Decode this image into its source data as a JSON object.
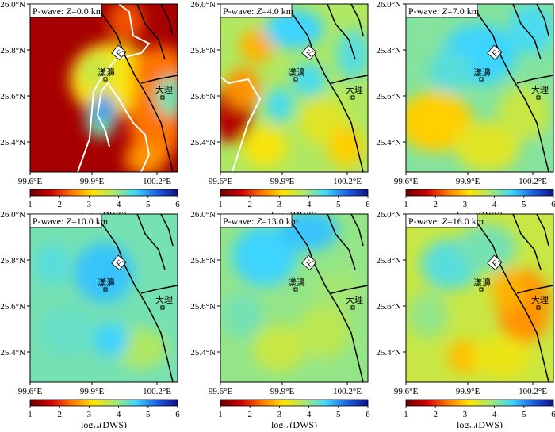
{
  "figure": {
    "panels": [
      {
        "id": "z0",
        "title_prefix": "P-wave: ",
        "title_var": "Z",
        "title_value": "=0.0 km",
        "dominant_dws": 1.4
      },
      {
        "id": "z4",
        "title_prefix": "P-wave: ",
        "title_var": "Z",
        "title_value": "=4.0 km",
        "dominant_dws": 3.8
      },
      {
        "id": "z7",
        "title_prefix": "P-wave: ",
        "title_var": "Z",
        "title_value": "=7.0 km",
        "dominant_dws": 4.1
      },
      {
        "id": "z10",
        "title_prefix": "P-wave: ",
        "title_var": "Z",
        "title_value": "=10.0 km",
        "dominant_dws": 4.2
      },
      {
        "id": "z13",
        "title_prefix": "P-wave: ",
        "title_var": "Z",
        "title_value": "=13.0 km",
        "dominant_dws": 4.0
      },
      {
        "id": "z16",
        "title_prefix": "P-wave: ",
        "title_var": "Z",
        "title_value": "=16.0 km",
        "dominant_dws": 3.6
      }
    ],
    "lat_labels": [
      "26.0°N",
      "25.8°N",
      "25.6°N",
      "25.4°N"
    ],
    "lon_labels": [
      "99.6°E",
      "99.9°E",
      "100.2°E"
    ],
    "fault_label": "F",
    "fault_subscript": "1",
    "city_yangbi": "漾濞",
    "city_dali": "大理",
    "colorbar": {
      "ticks": [
        "1",
        "2",
        "3",
        "4",
        "5",
        "6"
      ],
      "label_prefix": "log",
      "label_sub": "10",
      "label_suffix": "(DWS)",
      "stops": [
        "#6b0000",
        "#d40000",
        "#ff7a00",
        "#ffe400",
        "#a9e86a",
        "#3fd9ff",
        "#1a64e8",
        "#10108a"
      ]
    }
  }
}
